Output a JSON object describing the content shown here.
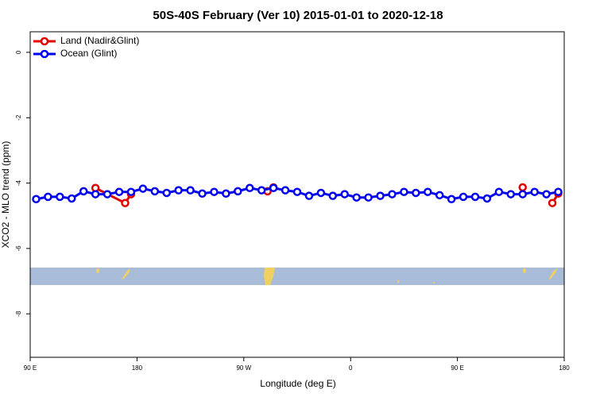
{
  "chart_data": {
    "type": "line",
    "title": "50S-40S February (Ver 10)   2015-01-01 to 2020-12-18",
    "x_label": "Longitude (deg E)",
    "y_label": "XCO2 - MLO trend (ppm)",
    "xlim": [
      90,
      540
    ],
    "ylim": [
      -9.33,
      0.63
    ],
    "xticks": [
      {
        "value": 90,
        "label": "90 E"
      },
      {
        "value": 180,
        "label": "180"
      },
      {
        "value": 270,
        "label": "90 W"
      },
      {
        "value": 360,
        "label": "0"
      },
      {
        "value": 450,
        "label": "90 E"
      },
      {
        "value": 540,
        "label": "180"
      }
    ],
    "yticks": [
      0,
      -2,
      -4,
      -6,
      -8
    ],
    "legend_position": "top-left",
    "series": [
      {
        "name": "Land (Nadir&Glint)",
        "color": "#e00000",
        "x": [
          145,
          170,
          175,
          230,
          290,
          295,
          400,
          505,
          515,
          530,
          535
        ],
        "values": [
          -4.15,
          -4.61,
          -4.34,
          null,
          -4.25,
          -4.13,
          null,
          -4.13,
          null,
          -4.61,
          -4.32
        ]
      },
      {
        "name": "Ocean (Glint)",
        "color": "#0000ee",
        "x": [
          95,
          105,
          115,
          125,
          135,
          145,
          155,
          165,
          175,
          185,
          195,
          205,
          215,
          225,
          235,
          245,
          255,
          265,
          275,
          285,
          295,
          305,
          315,
          325,
          335,
          345,
          355,
          365,
          375,
          385,
          395,
          405,
          415,
          425,
          435,
          445,
          455,
          465,
          475,
          485,
          495,
          505,
          515,
          525,
          535
        ],
        "values": [
          -4.49,
          -4.42,
          -4.42,
          -4.47,
          -4.25,
          -4.34,
          -4.34,
          -4.27,
          -4.27,
          -4.17,
          -4.25,
          -4.3,
          -4.22,
          -4.22,
          -4.32,
          -4.27,
          -4.32,
          -4.25,
          -4.15,
          -4.22,
          -4.15,
          -4.22,
          -4.27,
          -4.39,
          -4.3,
          -4.39,
          -4.34,
          -4.44,
          -4.44,
          -4.39,
          -4.34,
          -4.27,
          -4.3,
          -4.27,
          -4.37,
          -4.49,
          -4.42,
          -4.42,
          -4.47,
          -4.27,
          -4.34,
          -4.34,
          -4.27,
          -4.34,
          -4.27
        ]
      }
    ]
  }
}
